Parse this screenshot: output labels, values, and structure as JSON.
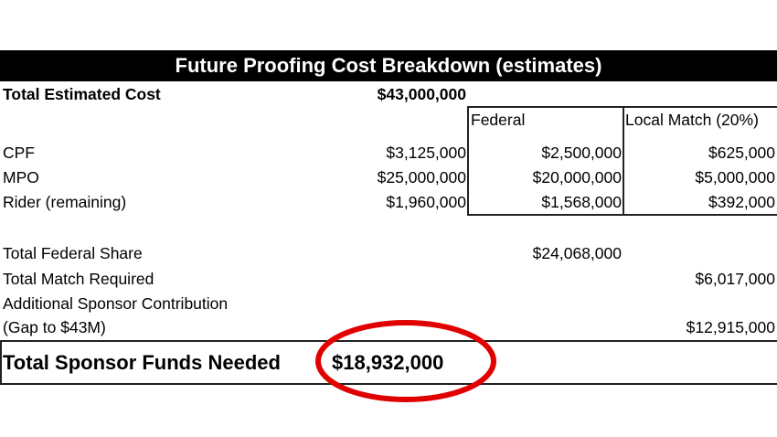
{
  "title": "Future Proofing Cost Breakdown (estimates)",
  "total_estimated": {
    "label": "Total Estimated Cost",
    "value": "$43,000,000"
  },
  "columns": {
    "federal": "Federal",
    "local": "Local Match (20%)"
  },
  "rows": [
    {
      "label": "CPF",
      "total": "$3,125,000",
      "federal": "$2,500,000",
      "local": "$625,000"
    },
    {
      "label": "MPO",
      "total": "$25,000,000",
      "federal": "$20,000,000",
      "local": "$5,000,000"
    },
    {
      "label": "Rider (remaining)",
      "total": "$1,960,000",
      "federal": "$1,568,000",
      "local": "$392,000"
    }
  ],
  "summary": {
    "federal_share": {
      "label": "Total Federal Share",
      "value": "$24,068,000"
    },
    "match_required": {
      "label": "Total Match Required",
      "value": "$6,017,000"
    },
    "sponsor_contribution": {
      "label": "Additional Sponsor Contribution",
      "label2": "(Gap to $43M)",
      "value": "$12,915,000"
    }
  },
  "final": {
    "label": "Total Sponsor Funds Needed",
    "value": "$18,932,000"
  },
  "colors": {
    "title_bg": "#000000",
    "highlight_circle": "#e00000"
  }
}
